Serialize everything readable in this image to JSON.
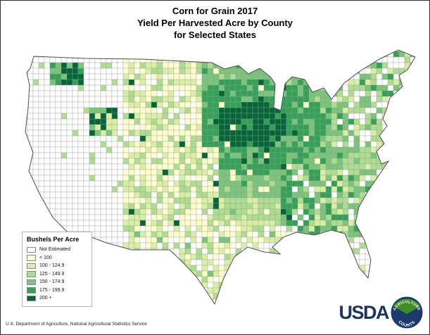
{
  "title": {
    "line1": "Corn for Grain 2017",
    "line2": "Yield Per Harvested Acre by County",
    "line3": "for Selected States"
  },
  "legend": {
    "title": "Bushels Per Acre",
    "items": [
      {
        "label": "Not Estimated",
        "color": "#FFFFFF"
      },
      {
        "label": "< 100",
        "color": "#FFFFCC"
      },
      {
        "label": "100 - 124.9",
        "color": "#D9F0A3"
      },
      {
        "label": "125 - 149.9",
        "color": "#ADDD8E"
      },
      {
        "label": "150 - 174.9",
        "color": "#78C679"
      },
      {
        "label": "175 - 199.9",
        "color": "#31A354"
      },
      {
        "label": "200 +",
        "color": "#006837"
      }
    ]
  },
  "footer": "U.S. Department of Agriculture, National Agricultural Statistics Service",
  "logo": {
    "usda": "USDA",
    "emblem_top": "AGRICULTURE",
    "emblem_bottom": "COUNTS",
    "usda_color": "#1c355e",
    "emblem_green": "#3f8f29",
    "emblem_blue": "#1b3a6b"
  },
  "map": {
    "outline_color": "#4d4d4d",
    "county_line_color": "#9a9a9a"
  }
}
